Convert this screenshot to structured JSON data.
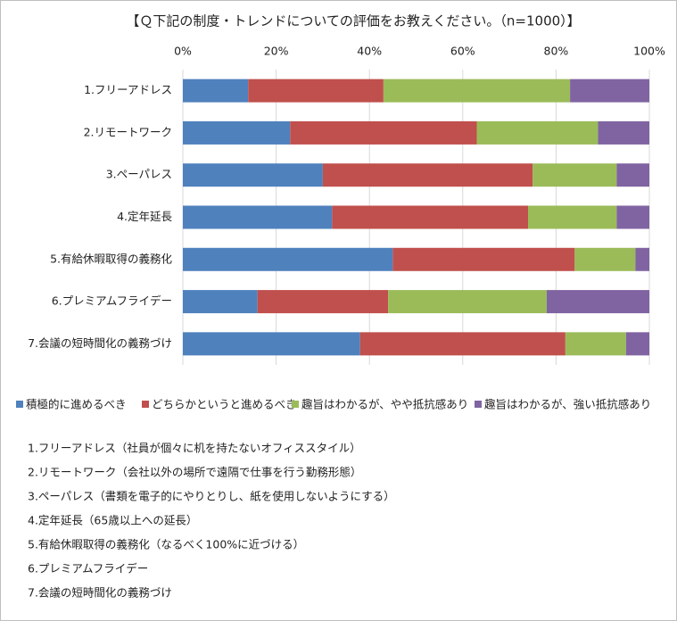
{
  "chart_data": {
    "type": "stacked-barh",
    "title": "【Ｑ下記の制度・トレンドについての評価をお教えください。（n=1000）】",
    "categories": [
      "1.フリーアドレス",
      "2.リモートワーク",
      "3.ペーパレス",
      "4.定年延長",
      "5.有給休暇取得の義務化",
      "6.プレミアムフライデー",
      "7.会議の短時間化の義務づけ"
    ],
    "series": [
      {
        "name": "積極的に進めるべき",
        "color": "#4f81bd",
        "values": [
          14,
          23,
          30,
          32,
          45,
          16,
          38
        ]
      },
      {
        "name": "どちらかというと進めるべき",
        "color": "#c0504d",
        "values": [
          29,
          40,
          45,
          42,
          39,
          28,
          44
        ]
      },
      {
        "name": "趣旨はわかるが、やや抵抗感あり",
        "color": "#9bbb59",
        "values": [
          40,
          26,
          18,
          19,
          13,
          34,
          13
        ]
      },
      {
        "name": "趣旨はわかるが、強い抵抗感あり",
        "color": "#8064a2",
        "values": [
          17,
          11,
          7,
          7,
          3,
          22,
          5
        ]
      }
    ],
    "xlim": [
      0,
      100
    ],
    "xticks": [
      {
        "value": 0,
        "label": "0%"
      },
      {
        "value": 20,
        "label": "20%"
      },
      {
        "value": 40,
        "label": "40%"
      },
      {
        "value": 60,
        "label": "60%"
      },
      {
        "value": 80,
        "label": "80%"
      },
      {
        "value": 100,
        "label": "100%"
      }
    ],
    "grid": true,
    "legend": "bottom",
    "notes": [
      "1.フリーアドレス（社員が個々に机を持たないオフィススタイル）",
      "2.リモートワーク（会社以外の場所で遠隔で仕事を行う勤務形態）",
      "3.ペーパレス（書類を電子的にやりとりし、紙を使用しないようにする）",
      "4.定年延長（65歳以上への延長）",
      "5.有給休暇取得の義務化（なるべく100%に近づける）",
      "6.プレミアムフライデー",
      "7.会議の短時間化の義務づけ"
    ]
  }
}
